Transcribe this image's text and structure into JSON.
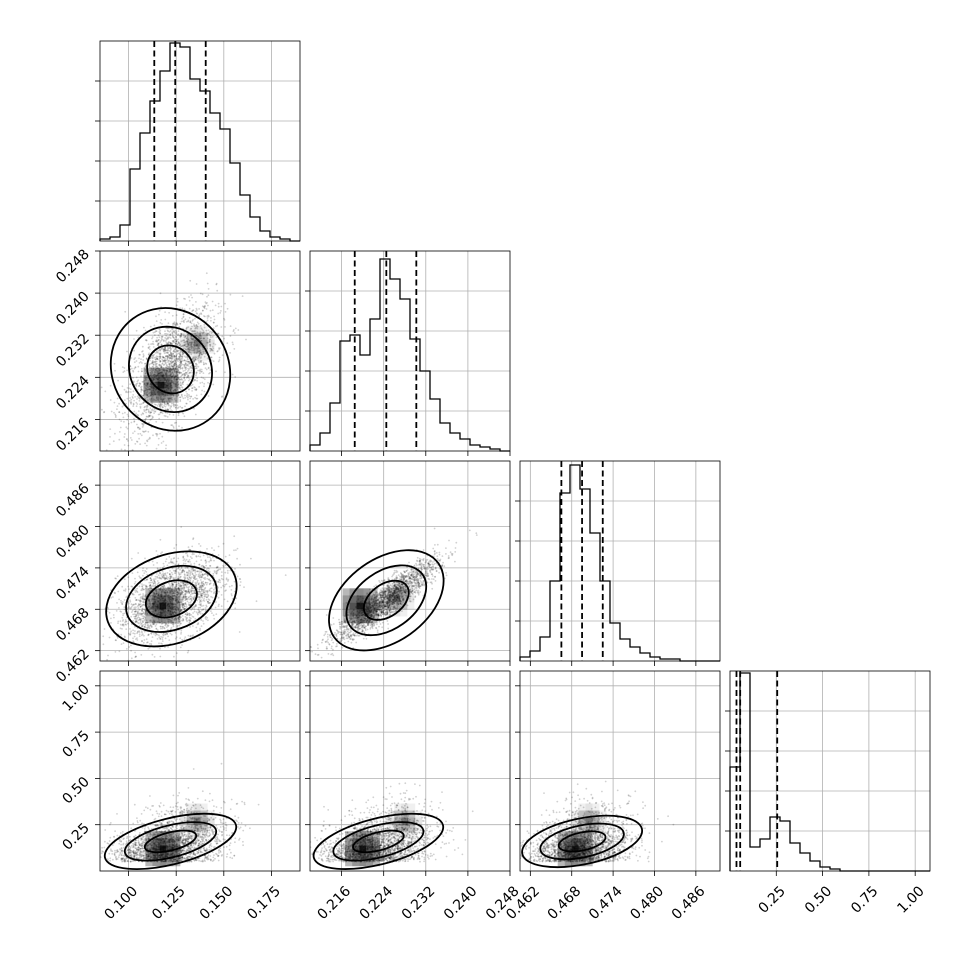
{
  "chart_data": {
    "type": "corner",
    "grid": true,
    "quantile_lines": "dashed",
    "colors": {
      "marks": "#000000",
      "grid": "#b0b0b0",
      "background": "#ffffff"
    },
    "params": [
      {
        "range": [
          0.085,
          0.19
        ],
        "ticks": [
          0.1,
          0.125,
          0.15,
          0.175
        ],
        "tick_labels": [
          "0.100",
          "0.125",
          "0.150",
          "0.175"
        ],
        "quantiles": [
          0.1135,
          0.1245,
          0.1405
        ],
        "hist": [
          0.01,
          0.02,
          0.08,
          0.36,
          0.54,
          0.7,
          0.85,
          0.99,
          0.97,
          0.81,
          0.75,
          0.64,
          0.56,
          0.39,
          0.23,
          0.12,
          0.05,
          0.02,
          0.01,
          0.0
        ]
      },
      {
        "range": [
          0.21,
          0.248
        ],
        "ticks": [
          0.216,
          0.224,
          0.232,
          0.24,
          0.248
        ],
        "tick_labels": [
          "0.216",
          "0.224",
          "0.232",
          "0.240",
          "0.248"
        ],
        "quantiles": [
          0.2185,
          0.2245,
          0.2302
        ],
        "hist": [
          0.03,
          0.09,
          0.24,
          0.55,
          0.58,
          0.48,
          0.66,
          0.96,
          0.86,
          0.76,
          0.56,
          0.4,
          0.26,
          0.14,
          0.09,
          0.06,
          0.03,
          0.02,
          0.01,
          0.0
        ]
      },
      {
        "range": [
          0.4605,
          0.4895
        ],
        "ticks": [
          0.462,
          0.468,
          0.474,
          0.48,
          0.486
        ],
        "tick_labels": [
          "0.462",
          "0.468",
          "0.474",
          "0.480",
          "0.486"
        ],
        "quantiles": [
          0.4665,
          0.4695,
          0.4725
        ],
        "hist": [
          0.02,
          0.05,
          0.12,
          0.4,
          0.84,
          0.98,
          0.86,
          0.64,
          0.4,
          0.19,
          0.11,
          0.07,
          0.04,
          0.02,
          0.01,
          0.01,
          0.0,
          0.0,
          0.0,
          0.0
        ]
      },
      {
        "range": [
          0.0,
          1.08
        ],
        "ticks": [
          0.25,
          0.5,
          0.75,
          1.0
        ],
        "tick_labels": [
          "0.25",
          "0.50",
          "0.75",
          "1.00"
        ],
        "quantiles": [
          0.035,
          0.055,
          0.255
        ],
        "hist": [
          0.52,
          0.99,
          0.12,
          0.16,
          0.27,
          0.25,
          0.14,
          0.09,
          0.05,
          0.02,
          0.01,
          0.0,
          0.0,
          0.0,
          0.0,
          0.0,
          0.0,
          0.0,
          0.0,
          0.0
        ]
      }
    ],
    "pairs": [
      {
        "x": 0,
        "y": 1,
        "mean": [
          0.122,
          0.2255
        ],
        "sd": [
          0.012,
          0.0058
        ],
        "rho": 0.55,
        "modes": [
          [
            0.117,
            0.2225
          ],
          [
            0.136,
            0.2305
          ]
        ]
      },
      {
        "x": 0,
        "y": 2,
        "mean": [
          0.1225,
          0.4695
        ],
        "sd": [
          0.014,
          0.0031
        ],
        "rho": 0.45,
        "modes": [
          [
            0.118,
            0.4685
          ]
        ]
      },
      {
        "x": 1,
        "y": 2,
        "mean": [
          0.2245,
          0.4693
        ],
        "sd": [
          0.0048,
          0.0029
        ],
        "rho": 0.9,
        "modes": [
          [
            0.2195,
            0.4685
          ],
          [
            0.2265,
            0.4695
          ]
        ]
      },
      {
        "x": 0,
        "y": 3,
        "mean": [
          0.122,
          0.13
        ],
        "sd": [
          0.014,
          0.09
        ],
        "rho": 0.4,
        "modes": [
          [
            0.118,
            0.12
          ],
          [
            0.136,
            0.27
          ]
        ]
      },
      {
        "x": 1,
        "y": 3,
        "mean": [
          0.223,
          0.13
        ],
        "sd": [
          0.005,
          0.09
        ],
        "rho": 0.4,
        "modes": [
          [
            0.22,
            0.12
          ],
          [
            0.228,
            0.27
          ]
        ]
      },
      {
        "x": 2,
        "y": 3,
        "mean": [
          0.4695,
          0.13
        ],
        "sd": [
          0.0035,
          0.09
        ],
        "rho": 0.3,
        "modes": [
          [
            0.4685,
            0.12
          ],
          [
            0.4705,
            0.27
          ]
        ]
      }
    ]
  }
}
